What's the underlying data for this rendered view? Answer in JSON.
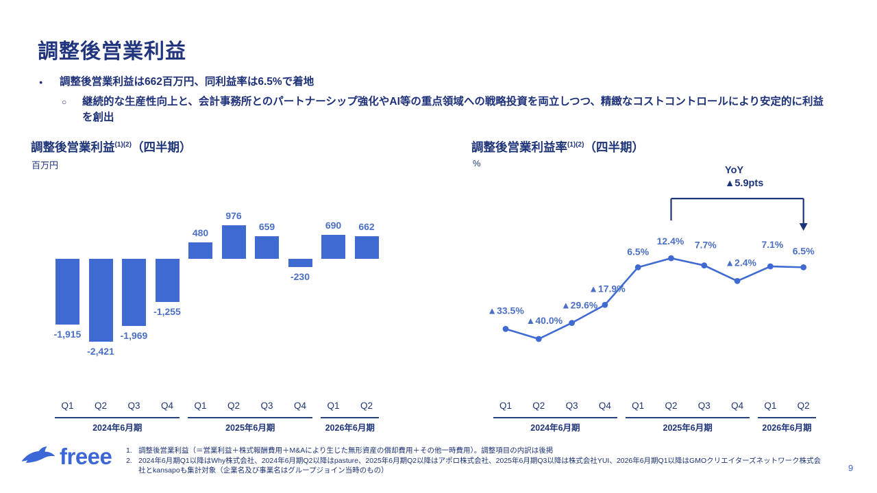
{
  "slide": {
    "title": "調整後営業利益",
    "bullet_icon": "●",
    "sub_bullet_icon": "○",
    "bullet1": "調整後営業利益は662百万円、同利益率は6.5%で着地",
    "bullet2": "継続的な生産性向上と、会計事務所とのパートナーシップ強化やAI等の重点領域への戦略投資を両立しつつ、精緻なコストコントロールにより安定的に利益を創出",
    "page_number": "9",
    "logo_text": "freee"
  },
  "left_chart": {
    "title": "調整後営業利益",
    "sup": "(1)(2)",
    "suffix": "（四半期）",
    "unit": "百万円"
  },
  "right_chart": {
    "title": "調整後営業利益率",
    "sup": "(1)(2)",
    "suffix": "（四半期）",
    "unit": "%",
    "yoy_line1": "YoY",
    "yoy_line2": "▲5.9pts"
  },
  "footnotes": [
    {
      "num": "1.",
      "text": "調整後営業利益（＝営業利益＋株式報酬費用＋M&Aにより生じた無形資産の償却費用＋その他一時費用）。調整項目の内訳は後掲"
    },
    {
      "num": "2.",
      "text": "2024年6月期Q1以降はWhy株式会社、2024年6月期Q2以降はpasture、2025年6月期Q2以降はアポロ株式会社、2025年6月期Q3以降は株式会社YUI、2026年6月期Q1以降はGMOクリエイターズネットワーク株式会社とkansapoも集計対象（企業名及び事業名はグループジョイン当時のもの）"
    }
  ],
  "colors": {
    "navy": "#1e3478",
    "chart_blue": "#3e6ad2",
    "label_blue": "#4a6fc5",
    "logo_blue": "#3c67d6"
  },
  "chart_data": [
    {
      "type": "bar",
      "title": "調整後営業利益（四半期）",
      "ylabel": "百万円",
      "categories": [
        "Q1",
        "Q2",
        "Q3",
        "Q4",
        "Q1",
        "Q2",
        "Q3",
        "Q4",
        "Q1",
        "Q2"
      ],
      "groups": [
        {
          "label": "2024年6月期",
          "span": 4
        },
        {
          "label": "2025年6月期",
          "span": 4
        },
        {
          "label": "2026年6月期",
          "span": 2
        }
      ],
      "values": [
        -1915,
        -2421,
        -1969,
        -1255,
        480,
        976,
        659,
        -230,
        690,
        662
      ],
      "labels": [
        "-1,915",
        "-2,421",
        "-1,969",
        "-1,255",
        "480",
        "976",
        "659",
        "-230",
        "690",
        "662"
      ],
      "bar_color": "#3e6ad2",
      "grid": false,
      "legend": "none"
    },
    {
      "type": "line",
      "title": "調整後営業利益率（四半期）",
      "ylabel": "%",
      "categories": [
        "Q1",
        "Q2",
        "Q3",
        "Q4",
        "Q1",
        "Q2",
        "Q3",
        "Q4",
        "Q1",
        "Q2"
      ],
      "groups": [
        {
          "label": "2024年6月期",
          "span": 4
        },
        {
          "label": "2025年6月期",
          "span": 4
        },
        {
          "label": "2026年6月期",
          "span": 2
        }
      ],
      "values": [
        -33.5,
        -40.0,
        -29.6,
        -17.9,
        6.5,
        12.4,
        7.7,
        -2.4,
        7.1,
        6.5
      ],
      "labels": [
        "▲33.5%",
        "▲40.0%",
        "▲29.6%",
        "▲17.9%",
        "6.5%",
        "12.4%",
        "7.7%",
        "▲2.4%",
        "7.1%",
        "6.5%"
      ],
      "line_color": "#3e6ad2",
      "annotation": {
        "label": "YoY ▲5.9pts",
        "from_index": 5,
        "to_index": 9
      },
      "grid": false,
      "legend": "none"
    }
  ]
}
